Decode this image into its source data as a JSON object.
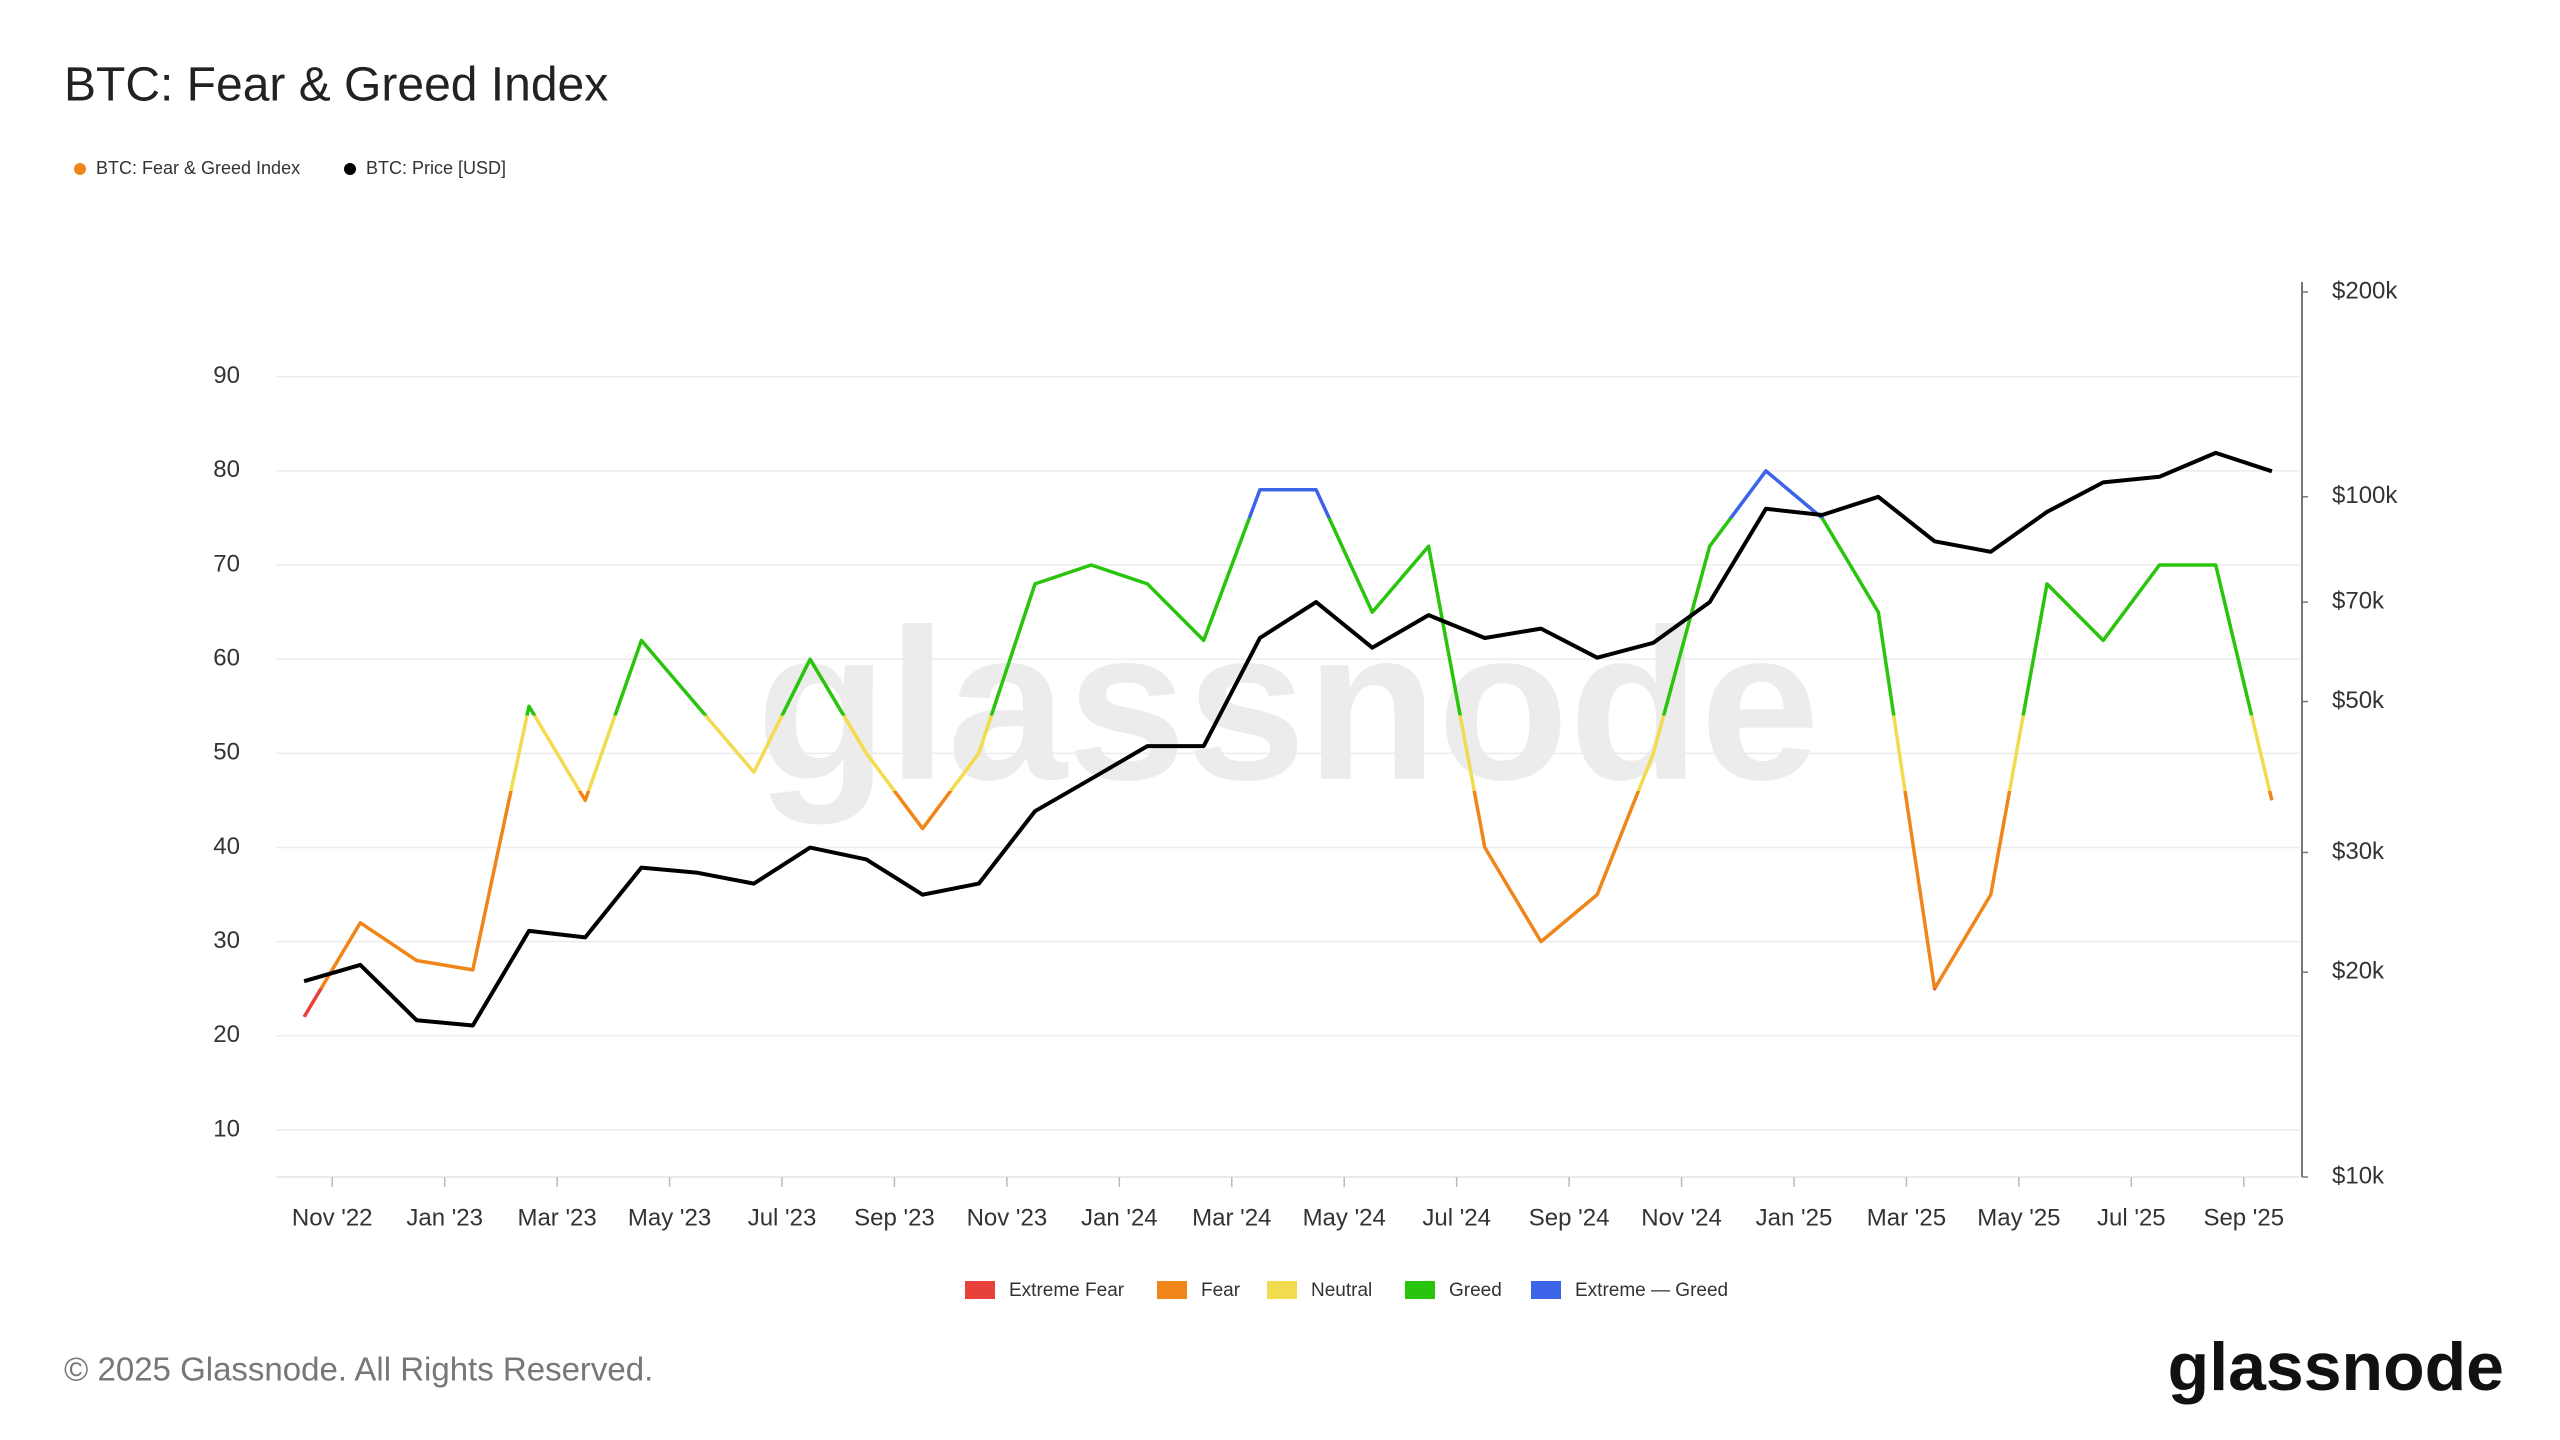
{
  "chart_data": {
    "type": "line",
    "title": "BTC: Fear & Greed Index",
    "watermark": "glassnode",
    "copyright": "© 2025 Glassnode. All Rights Reserved.",
    "brand": "glassnode",
    "x": [
      "2022-10",
      "2022-11",
      "2022-12",
      "2023-01",
      "2023-02",
      "2023-03",
      "2023-04",
      "2023-05",
      "2023-06",
      "2023-07",
      "2023-08",
      "2023-09",
      "2023-10",
      "2023-11",
      "2023-12",
      "2024-01",
      "2024-02",
      "2024-03",
      "2024-04",
      "2024-05",
      "2024-06",
      "2024-07",
      "2024-08",
      "2024-09",
      "2024-10",
      "2024-11",
      "2024-12",
      "2025-01",
      "2025-02",
      "2025-03",
      "2025-04",
      "2025-05",
      "2025-06",
      "2025-07",
      "2025-08",
      "2025-09"
    ],
    "series": [
      {
        "name": "BTC: Fear & Greed Index",
        "color": "#f0861a",
        "values": [
          22,
          32,
          28,
          27,
          55,
          45,
          62,
          55,
          48,
          60,
          50,
          42,
          50,
          68,
          70,
          68,
          62,
          78,
          78,
          65,
          72,
          40,
          30,
          35,
          50,
          72,
          80,
          75,
          65,
          25,
          35,
          68,
          62,
          70,
          70,
          45
        ]
      },
      {
        "name": "BTC: Price [USD]",
        "color": "#000000",
        "axis": "y2",
        "values": [
          19400,
          20500,
          17000,
          16700,
          23000,
          22500,
          28500,
          28000,
          27000,
          30500,
          29300,
          26000,
          27000,
          34500,
          38500,
          43000,
          43000,
          62000,
          70000,
          60000,
          67000,
          62000,
          64000,
          58000,
          61000,
          70000,
          96000,
          94000,
          100000,
          86000,
          83000,
          95000,
          105000,
          107000,
          116000,
          109000
        ]
      }
    ],
    "zones": [
      {
        "name": "Extreme Fear",
        "color": "#e8413c"
      },
      {
        "name": "Fear",
        "color": "#f0861a"
      },
      {
        "name": "Neutral",
        "color": "#f3db4f"
      },
      {
        "name": "Greed",
        "color": "#29c40c"
      },
      {
        "name": "Extreme — Greed",
        "color": "#3d64e8"
      }
    ],
    "zone_bounds": [
      25,
      46,
      54,
      75
    ],
    "xlim": [
      "2022-10",
      "2025-10"
    ],
    "xticks": [
      {
        "value": "2022-11",
        "label": "Nov '22"
      },
      {
        "value": "2023-01",
        "label": "Jan '23"
      },
      {
        "value": "2023-03",
        "label": "Mar '23"
      },
      {
        "value": "2023-05",
        "label": "May '23"
      },
      {
        "value": "2023-07",
        "label": "Jul '23"
      },
      {
        "value": "2023-09",
        "label": "Sep '23"
      },
      {
        "value": "2023-11",
        "label": "Nov '23"
      },
      {
        "value": "2024-01",
        "label": "Jan '24"
      },
      {
        "value": "2024-03",
        "label": "Mar '24"
      },
      {
        "value": "2024-05",
        "label": "May '24"
      },
      {
        "value": "2024-07",
        "label": "Jul '24"
      },
      {
        "value": "2024-09",
        "label": "Sep '24"
      },
      {
        "value": "2024-11",
        "label": "Nov '24"
      },
      {
        "value": "2025-01",
        "label": "Jan '25"
      },
      {
        "value": "2025-03",
        "label": "Mar '25"
      },
      {
        "value": "2025-05",
        "label": "May '25"
      },
      {
        "value": "2025-07",
        "label": "Jul '25"
      },
      {
        "value": "2025-09",
        "label": "Sep '25"
      }
    ],
    "ylim": [
      5,
      99
    ],
    "yticks": [
      10,
      20,
      30,
      40,
      50,
      60,
      70,
      80,
      90
    ],
    "y2lim": [
      10000,
      200000
    ],
    "y2log": true,
    "y2ticks": [
      {
        "value": 10000,
        "label": "$10k"
      },
      {
        "value": 20000,
        "label": "$20k"
      },
      {
        "value": 30000,
        "label": "$30k"
      },
      {
        "value": 50000,
        "label": "$50k"
      },
      {
        "value": 70000,
        "label": "$70k"
      },
      {
        "value": 100000,
        "label": "$100k"
      },
      {
        "value": 200000,
        "label": "$200k"
      }
    ],
    "grid": true
  }
}
